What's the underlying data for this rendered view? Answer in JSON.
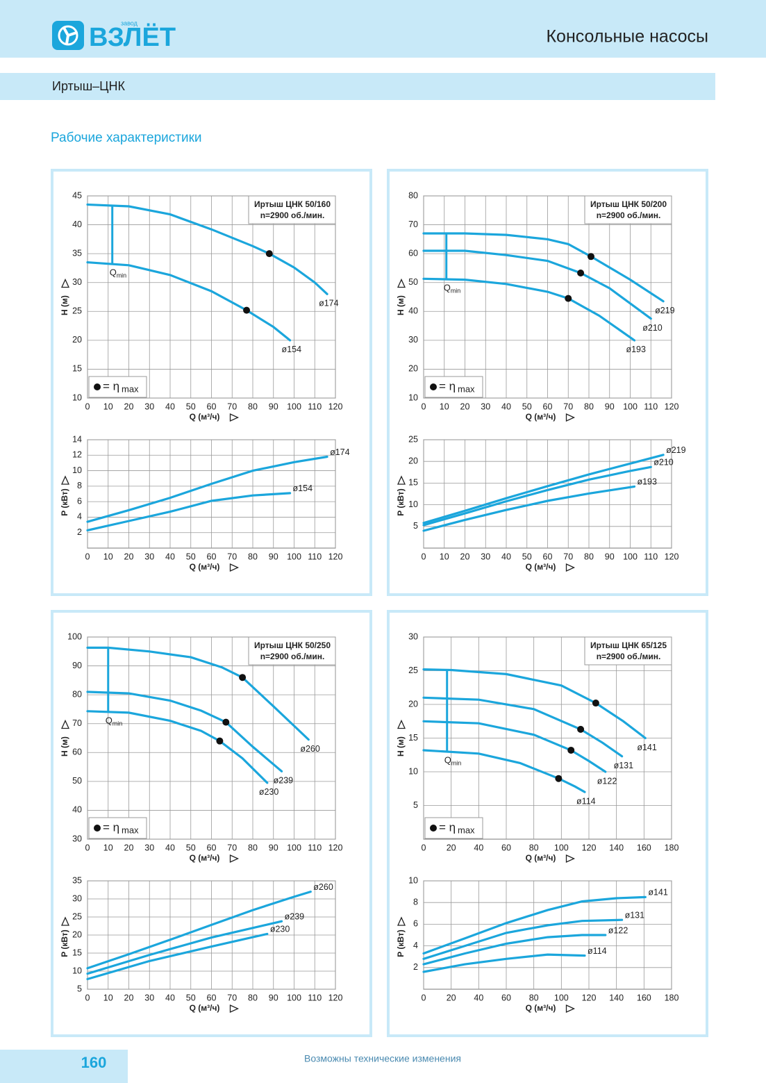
{
  "header": {
    "logo_small": "завод",
    "logo": "ВЗЛЁТ",
    "title": "Консольные насосы",
    "subtitle": "Иртыш–ЦНК",
    "section": "Рабочие характеристики"
  },
  "footer": {
    "page": "160",
    "note": "Возможны технические изменения"
  },
  "chart_data": [
    {
      "type": "line",
      "title": "Иртыш ЦНК 50/160",
      "subtitle": "n=2900 об./мин.",
      "xlabel": "Q (м³/ч)",
      "ylabel": "H (м)",
      "xlim": [
        0,
        120
      ],
      "xticks": [
        0,
        10,
        20,
        30,
        40,
        50,
        60,
        70,
        80,
        90,
        100,
        110,
        120
      ],
      "ylim": [
        10,
        45
      ],
      "yticks": [
        10,
        15,
        20,
        25,
        30,
        35,
        40,
        45
      ],
      "grid": true,
      "series": [
        {
          "name": "ø174",
          "color": "#1ba6dc",
          "x": [
            0,
            20,
            40,
            60,
            80,
            88,
            100,
            110,
            116
          ],
          "values": [
            43.5,
            43.2,
            41.8,
            39.2,
            36.3,
            35,
            32.6,
            30,
            28
          ]
        },
        {
          "name": "ø154",
          "color": "#1ba6dc",
          "x": [
            0,
            20,
            40,
            60,
            77,
            90,
            98
          ],
          "values": [
            33.5,
            33,
            31.3,
            28.5,
            25.2,
            22.3,
            20
          ]
        }
      ],
      "markers": {
        "color": "#111111",
        "x": [
          88,
          77
        ],
        "values": [
          35,
          25.2
        ]
      },
      "marker_legend": {
        "text": "= η",
        "subscript": "max"
      },
      "qmin": {
        "symbol": "Q",
        "subscript": "min",
        "x": 12
      }
    },
    {
      "type": "line",
      "xlabel": "Q (м³/ч)",
      "ylabel": "P (кВт)",
      "xlim": [
        0,
        120
      ],
      "xticks": [
        0,
        10,
        20,
        30,
        40,
        50,
        60,
        70,
        80,
        90,
        100,
        110,
        120
      ],
      "ylim": [
        0,
        14
      ],
      "yticks": [
        2,
        4,
        6,
        8,
        10,
        12,
        14
      ],
      "grid": true,
      "series": [
        {
          "name": "ø174",
          "color": "#1ba6dc",
          "x": [
            0,
            20,
            40,
            60,
            80,
            100,
            116
          ],
          "values": [
            3.4,
            4.9,
            6.5,
            8.3,
            10,
            11.1,
            11.8
          ]
        },
        {
          "name": "ø154",
          "color": "#1ba6dc",
          "x": [
            0,
            20,
            40,
            60,
            80,
            98
          ],
          "values": [
            2.3,
            3.5,
            4.7,
            6.1,
            6.8,
            7.1
          ]
        }
      ]
    },
    {
      "type": "line",
      "title": "Иртыш ЦНК 50/200",
      "subtitle": "n=2900 об./мин.",
      "xlabel": "Q (м³/ч)",
      "ylabel": "H (м)",
      "xlim": [
        0,
        120
      ],
      "xticks": [
        0,
        10,
        20,
        30,
        40,
        50,
        60,
        70,
        80,
        90,
        100,
        110,
        120
      ],
      "ylim": [
        10,
        80
      ],
      "yticks": [
        10,
        20,
        30,
        40,
        50,
        60,
        70,
        80
      ],
      "grid": true,
      "series": [
        {
          "name": "ø219",
          "color": "#1ba6dc",
          "x": [
            0,
            20,
            40,
            60,
            70,
            81,
            100,
            116
          ],
          "values": [
            67,
            67,
            66.5,
            65,
            63.3,
            59,
            51,
            43.5
          ]
        },
        {
          "name": "ø210",
          "color": "#1ba6dc",
          "x": [
            0,
            20,
            40,
            60,
            76,
            90,
            110
          ],
          "values": [
            61,
            61,
            59.5,
            57.5,
            53.3,
            48,
            37.5
          ]
        },
        {
          "name": "ø193",
          "color": "#1ba6dc",
          "x": [
            0,
            20,
            40,
            60,
            70,
            85,
            102
          ],
          "values": [
            51.3,
            51,
            49.5,
            46.8,
            44.5,
            38.5,
            30
          ]
        }
      ],
      "markers": {
        "color": "#111111",
        "x": [
          81,
          76,
          70
        ],
        "values": [
          59,
          53.3,
          44.5
        ]
      },
      "marker_legend": {
        "text": "= η",
        "subscript": "max"
      },
      "qmin": {
        "symbol": "Q",
        "subscript": "min",
        "x": 11
      }
    },
    {
      "type": "line",
      "xlabel": "Q (м³/ч)",
      "ylabel": "P (кВт)",
      "xlim": [
        0,
        120
      ],
      "xticks": [
        0,
        10,
        20,
        30,
        40,
        50,
        60,
        70,
        80,
        90,
        100,
        110,
        120
      ],
      "ylim": [
        0,
        25
      ],
      "yticks": [
        5,
        10,
        15,
        20,
        25
      ],
      "grid": true,
      "series": [
        {
          "name": "ø219",
          "color": "#1ba6dc",
          "x": [
            0,
            20,
            40,
            60,
            80,
            100,
            116
          ],
          "values": [
            5.8,
            8.6,
            11.5,
            14.3,
            17,
            19.5,
            21.5
          ]
        },
        {
          "name": "ø210",
          "color": "#1ba6dc",
          "x": [
            0,
            20,
            40,
            60,
            80,
            100,
            110
          ],
          "values": [
            5.3,
            8,
            10.8,
            13.4,
            15.8,
            17.8,
            18.7
          ]
        },
        {
          "name": "ø193",
          "color": "#1ba6dc",
          "x": [
            0,
            20,
            40,
            60,
            80,
            102
          ],
          "values": [
            4,
            6.5,
            8.8,
            10.9,
            12.6,
            14.2
          ]
        }
      ]
    },
    {
      "type": "line",
      "title": "Иртыш ЦНК 50/250",
      "subtitle": "n=2900 об./мин.",
      "xlabel": "Q (м³/ч)",
      "ylabel": "H (м)",
      "xlim": [
        0,
        120
      ],
      "xticks": [
        0,
        10,
        20,
        30,
        40,
        50,
        60,
        70,
        80,
        90,
        100,
        110,
        120
      ],
      "ylim": [
        30,
        100
      ],
      "yticks": [
        30,
        40,
        50,
        60,
        70,
        80,
        90,
        100
      ],
      "grid": true,
      "series": [
        {
          "name": "ø260",
          "color": "#1ba6dc",
          "x": [
            0,
            10,
            30,
            50,
            65,
            75,
            90,
            107
          ],
          "values": [
            96.3,
            96.3,
            95,
            93,
            89.5,
            86,
            76,
            64.5
          ]
        },
        {
          "name": "ø239",
          "color": "#1ba6dc",
          "x": [
            0,
            20,
            40,
            55,
            67,
            80,
            94
          ],
          "values": [
            81,
            80.5,
            78,
            74.5,
            70.5,
            62,
            53.5
          ]
        },
        {
          "name": "ø230",
          "color": "#1ba6dc",
          "x": [
            0,
            20,
            40,
            55,
            64,
            75,
            87
          ],
          "values": [
            74.3,
            73.8,
            71,
            67.5,
            64,
            58,
            49.5
          ]
        }
      ],
      "markers": {
        "color": "#111111",
        "x": [
          75,
          67,
          64
        ],
        "values": [
          86,
          70.5,
          64
        ]
      },
      "marker_legend": {
        "text": "= η",
        "subscript": "max"
      },
      "qmin": {
        "symbol": "Q",
        "subscript": "min",
        "x": 10
      }
    },
    {
      "type": "line",
      "xlabel": "Q (м³/ч)",
      "ylabel": "P (кВт)",
      "xlim": [
        0,
        120
      ],
      "xticks": [
        0,
        10,
        20,
        30,
        40,
        50,
        60,
        70,
        80,
        90,
        100,
        110,
        120
      ],
      "ylim": [
        5,
        35
      ],
      "yticks": [
        5,
        10,
        15,
        20,
        25,
        30,
        35
      ],
      "grid": true,
      "series": [
        {
          "name": "ø260",
          "color": "#1ba6dc",
          "x": [
            0,
            20,
            40,
            60,
            80,
            100,
            108
          ],
          "values": [
            10.8,
            14.7,
            18.7,
            22.8,
            26.9,
            30.6,
            32
          ]
        },
        {
          "name": "ø239",
          "color": "#1ba6dc",
          "x": [
            0,
            30,
            60,
            94
          ],
          "values": [
            9.3,
            14.5,
            19.3,
            23.8
          ]
        },
        {
          "name": "ø230",
          "color": "#1ba6dc",
          "x": [
            0,
            30,
            60,
            87
          ],
          "values": [
            7.8,
            12.8,
            16.8,
            20.3
          ]
        }
      ]
    },
    {
      "type": "line",
      "title": "Иртыш ЦНК 65/125",
      "subtitle": "n=2900 об./мин.",
      "xlabel": "Q (м³/ч)",
      "ylabel": "H (м)",
      "xlim": [
        0,
        180
      ],
      "xticks": [
        0,
        20,
        40,
        60,
        80,
        100,
        120,
        140,
        160,
        180
      ],
      "ylim": [
        0,
        30
      ],
      "yticks": [
        5,
        10,
        15,
        20,
        25,
        30
      ],
      "grid": true,
      "series": [
        {
          "name": "ø141",
          "color": "#1ba6dc",
          "x": [
            0,
            20,
            60,
            100,
            125,
            145,
            161
          ],
          "values": [
            25.2,
            25.1,
            24.5,
            22.8,
            20.2,
            17.5,
            15
          ]
        },
        {
          "name": "ø131",
          "color": "#1ba6dc",
          "x": [
            0,
            40,
            80,
            114,
            130,
            144
          ],
          "values": [
            21,
            20.7,
            19.3,
            16.3,
            14.3,
            12.3
          ]
        },
        {
          "name": "ø122",
          "color": "#1ba6dc",
          "x": [
            0,
            40,
            80,
            107,
            120,
            132
          ],
          "values": [
            17.5,
            17.2,
            15.5,
            13.2,
            11.6,
            10
          ]
        },
        {
          "name": "ø114",
          "color": "#1ba6dc",
          "x": [
            0,
            40,
            70,
            98,
            110,
            117
          ],
          "values": [
            13.2,
            12.7,
            11.3,
            9,
            7.8,
            7
          ]
        }
      ],
      "markers": {
        "color": "#111111",
        "x": [
          125,
          114,
          107,
          98
        ],
        "values": [
          20.2,
          16.3,
          13.2,
          9
        ]
      },
      "marker_legend": {
        "text": "= η",
        "subscript": "max"
      },
      "qmin": {
        "symbol": "Q",
        "subscript": "min",
        "x": 17
      }
    },
    {
      "type": "line",
      "xlabel": "Q (м³/ч)",
      "ylabel": "P (кВт)",
      "xlim": [
        0,
        180
      ],
      "xticks": [
        0,
        20,
        40,
        60,
        80,
        100,
        120,
        140,
        160,
        180
      ],
      "ylim": [
        0,
        10
      ],
      "yticks": [
        2,
        4,
        6,
        8,
        10
      ],
      "grid": true,
      "series": [
        {
          "name": "ø141",
          "color": "#1ba6dc",
          "x": [
            0,
            30,
            60,
            90,
            115,
            140,
            161
          ],
          "values": [
            3.3,
            4.7,
            6.1,
            7.3,
            8.1,
            8.4,
            8.5
          ]
        },
        {
          "name": "ø131",
          "color": "#1ba6dc",
          "x": [
            0,
            30,
            60,
            90,
            115,
            144
          ],
          "values": [
            2.8,
            4,
            5.2,
            5.9,
            6.3,
            6.4
          ]
        },
        {
          "name": "ø122",
          "color": "#1ba6dc",
          "x": [
            0,
            30,
            60,
            90,
            115,
            132
          ],
          "values": [
            2.3,
            3.3,
            4.2,
            4.8,
            5,
            5
          ]
        },
        {
          "name": "ø114",
          "color": "#1ba6dc",
          "x": [
            0,
            30,
            60,
            90,
            117
          ],
          "values": [
            1.6,
            2.3,
            2.8,
            3.2,
            3.1
          ]
        }
      ]
    }
  ]
}
